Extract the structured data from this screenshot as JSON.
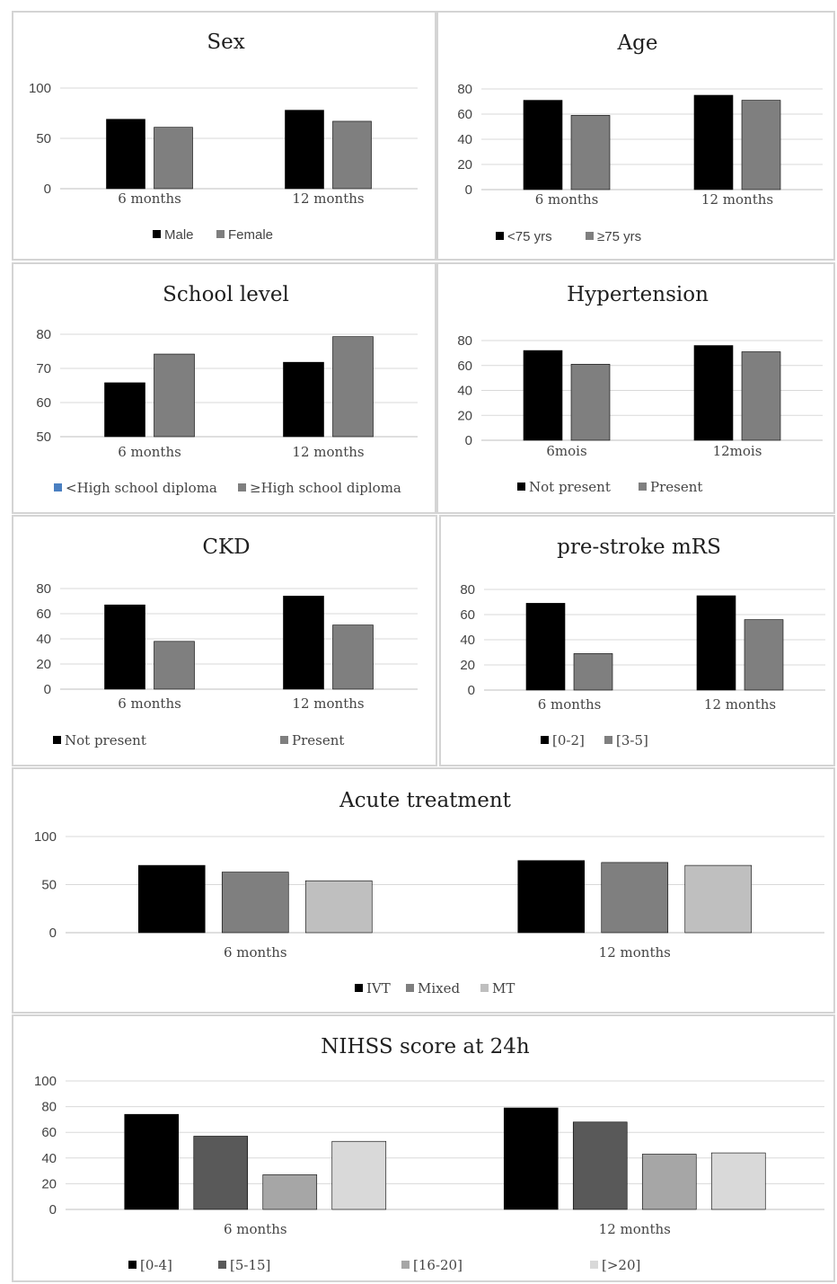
{
  "chart_data": [
    {
      "id": "sex",
      "type": "bar",
      "title": "Sex",
      "categories": [
        "6 months",
        "12 months"
      ],
      "ylim": [
        0,
        100
      ],
      "yticks": [
        0,
        50,
        100
      ],
      "grid": true,
      "legend_position": "bottom",
      "legend_font": "sans",
      "series": [
        {
          "name": "Male",
          "color": "#000000",
          "values": [
            69,
            78
          ]
        },
        {
          "name": "Female",
          "color": "#7f7f7f",
          "values": [
            61,
            67
          ]
        }
      ]
    },
    {
      "id": "age",
      "type": "bar",
      "title": "Age",
      "categories": [
        "6 months",
        "12 months"
      ],
      "ylim": [
        0,
        80
      ],
      "yticks": [
        0,
        20,
        40,
        60,
        80
      ],
      "grid": true,
      "legend_position": "bottom",
      "legend_font": "sans",
      "series": [
        {
          "name": "<75 yrs",
          "color": "#000000",
          "values": [
            71,
            75
          ]
        },
        {
          "name": "≥75 yrs",
          "color": "#7f7f7f",
          "values": [
            59,
            71
          ]
        }
      ]
    },
    {
      "id": "school",
      "type": "bar",
      "title": "School level",
      "categories": [
        "6 months",
        "12 months"
      ],
      "ylim": [
        50,
        80
      ],
      "yticks": [
        50,
        60,
        70,
        80
      ],
      "grid": true,
      "legend_position": "bottom",
      "legend_font": "serif",
      "series": [
        {
          "name": "<High school diploma",
          "color": "#000000",
          "legend_color": "#4a7fc1",
          "values": [
            65.8,
            71.8
          ]
        },
        {
          "name": "≥High school diploma",
          "color": "#7f7f7f",
          "values": [
            74.2,
            79.3
          ]
        }
      ]
    },
    {
      "id": "hypertension",
      "type": "bar",
      "title": "Hypertension",
      "categories": [
        "6mois",
        "12mois"
      ],
      "ylim": [
        0,
        80
      ],
      "yticks": [
        0,
        20,
        40,
        60,
        80
      ],
      "grid": true,
      "legend_position": "bottom",
      "legend_font": "serif",
      "series": [
        {
          "name": "Not present",
          "color": "#000000",
          "values": [
            72,
            76
          ]
        },
        {
          "name": "Present",
          "color": "#7f7f7f",
          "values": [
            61,
            71
          ]
        }
      ]
    },
    {
      "id": "ckd",
      "type": "bar",
      "title": "CKD",
      "categories": [
        "6 months",
        "12 months"
      ],
      "ylim": [
        0,
        80
      ],
      "yticks": [
        0,
        20,
        40,
        60,
        80
      ],
      "grid": true,
      "legend_position": "bottom",
      "legend_font": "serif",
      "series": [
        {
          "name": "Not present",
          "color": "#000000",
          "values": [
            67,
            74
          ]
        },
        {
          "name": "Present",
          "color": "#7f7f7f",
          "values": [
            38,
            51
          ]
        }
      ]
    },
    {
      "id": "prestroke",
      "type": "bar",
      "title": "pre-stroke mRS",
      "categories": [
        "6 months",
        "12 months"
      ],
      "ylim": [
        0,
        80
      ],
      "yticks": [
        0,
        20,
        40,
        60,
        80
      ],
      "grid": true,
      "legend_position": "bottom",
      "legend_font": "serif",
      "series": [
        {
          "name": "[0-2]",
          "color": "#000000",
          "values": [
            69,
            75
          ]
        },
        {
          "name": "[3-5]",
          "color": "#7f7f7f",
          "values": [
            29,
            56
          ]
        }
      ]
    },
    {
      "id": "acute",
      "type": "bar",
      "title": "Acute treatment",
      "categories": [
        "6 months",
        "12 months"
      ],
      "ylim": [
        0,
        100
      ],
      "yticks": [
        0,
        50,
        100
      ],
      "grid": true,
      "legend_position": "bottom",
      "legend_font": "serif",
      "series": [
        {
          "name": "IVT",
          "color": "#000000",
          "values": [
            70,
            75
          ]
        },
        {
          "name": "Mixed",
          "color": "#7f7f7f",
          "values": [
            63,
            73
          ]
        },
        {
          "name": "MT",
          "color": "#bfbfbf",
          "values": [
            54,
            70
          ]
        }
      ]
    },
    {
      "id": "nihss",
      "type": "bar",
      "title": "NIHSS score at 24h",
      "categories": [
        "6 months",
        "12 months"
      ],
      "ylim": [
        0,
        100
      ],
      "yticks": [
        0,
        20,
        40,
        60,
        80,
        100
      ],
      "grid": true,
      "legend_position": "bottom",
      "legend_font": "serif",
      "series": [
        {
          "name": "[0-4]",
          "color": "#000000",
          "values": [
            74,
            79
          ]
        },
        {
          "name": "[5-15]",
          "color": "#595959",
          "values": [
            57,
            68
          ]
        },
        {
          "name": "[16-20]",
          "color": "#a6a6a6",
          "values": [
            27,
            43
          ]
        },
        {
          "name": "[>20]",
          "color": "#d9d9d9",
          "values": [
            53,
            44
          ]
        }
      ]
    }
  ]
}
